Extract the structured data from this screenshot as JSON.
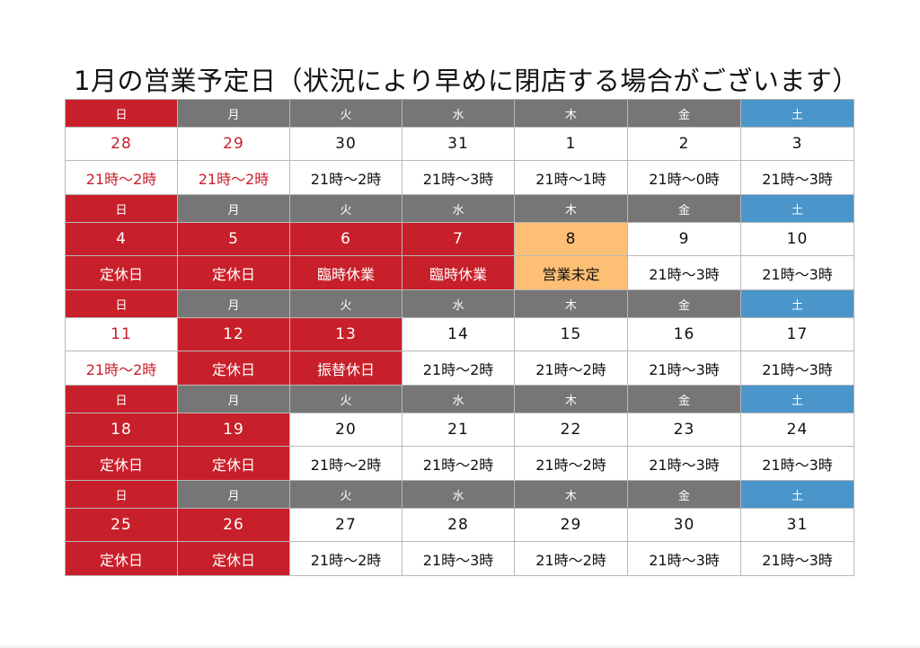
{
  "title": "1月の営業予定日（状況により早めに閉店する場合がございます）",
  "colors": {
    "closed": "#c8202a",
    "tbd": "#fdbf73",
    "weekday_header": "#767676",
    "saturday_header": "#4a95c9",
    "prev_month_text": "#c8202a"
  },
  "weekday_labels": [
    "日",
    "月",
    "火",
    "水",
    "木",
    "金",
    "土"
  ],
  "weeks": [
    {
      "dates": [
        "28",
        "29",
        "30",
        "31",
        "1",
        "2",
        "3"
      ],
      "hours": [
        "21時〜2時",
        "21時〜2時",
        "21時〜2時",
        "21時〜3時",
        "21時〜1時",
        "21時〜0時",
        "21時〜3時"
      ],
      "status": [
        "redtext",
        "redtext",
        "normal",
        "normal",
        "normal",
        "normal",
        "normal"
      ]
    },
    {
      "dates": [
        "4",
        "5",
        "6",
        "7",
        "8",
        "9",
        "10"
      ],
      "hours": [
        "定休日",
        "定休日",
        "臨時休業",
        "臨時休業",
        "営業未定",
        "21時〜3時",
        "21時〜3時"
      ],
      "status": [
        "closed",
        "closed",
        "closed",
        "closed",
        "tbd",
        "normal",
        "normal"
      ]
    },
    {
      "dates": [
        "11",
        "12",
        "13",
        "14",
        "15",
        "16",
        "17"
      ],
      "hours": [
        "21時〜2時",
        "定休日",
        "振替休日",
        "21時〜2時",
        "21時〜2時",
        "21時〜3時",
        "21時〜3時"
      ],
      "status": [
        "redtext",
        "closed",
        "closed",
        "normal",
        "normal",
        "normal",
        "normal"
      ]
    },
    {
      "dates": [
        "18",
        "19",
        "20",
        "21",
        "22",
        "23",
        "24"
      ],
      "hours": [
        "定休日",
        "定休日",
        "21時〜2時",
        "21時〜2時",
        "21時〜2時",
        "21時〜3時",
        "21時〜3時"
      ],
      "status": [
        "closed",
        "closed",
        "normal",
        "normal",
        "normal",
        "normal",
        "normal"
      ]
    },
    {
      "dates": [
        "25",
        "26",
        "27",
        "28",
        "29",
        "30",
        "31"
      ],
      "hours": [
        "定休日",
        "定休日",
        "21時〜2時",
        "21時〜3時",
        "21時〜2時",
        "21時〜3時",
        "21時〜3時"
      ],
      "status": [
        "closed",
        "closed",
        "normal",
        "normal",
        "normal",
        "normal",
        "normal"
      ]
    }
  ]
}
